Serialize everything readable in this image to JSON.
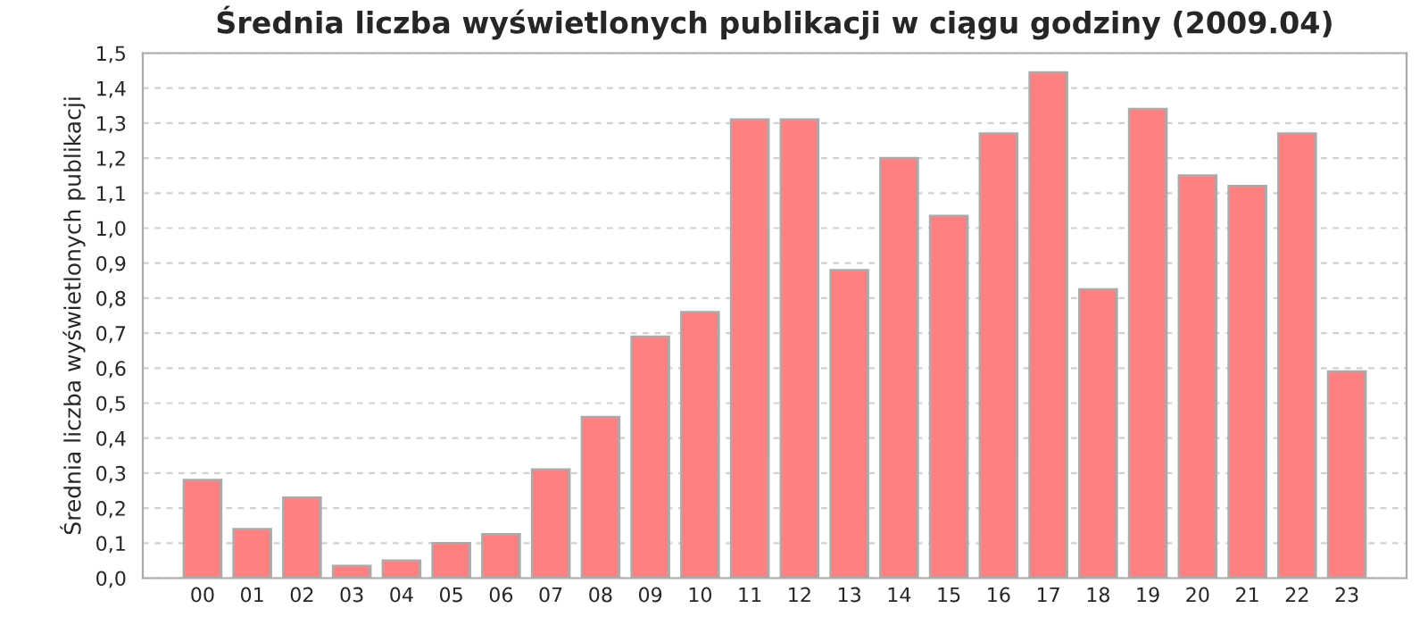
{
  "chart_data": {
    "type": "bar",
    "title": "Średnia liczba wyświetlonych publikacji w ciągu godziny (2009.04)",
    "ylabel": "Średnia liczba wyświetlonych publikacji",
    "categories": [
      "00",
      "01",
      "02",
      "03",
      "04",
      "05",
      "06",
      "07",
      "08",
      "09",
      "10",
      "11",
      "12",
      "13",
      "14",
      "15",
      "16",
      "17",
      "18",
      "19",
      "20",
      "21",
      "22",
      "23"
    ],
    "values": [
      0.28,
      0.14,
      0.23,
      0.035,
      0.05,
      0.1,
      0.125,
      0.31,
      0.46,
      0.69,
      0.76,
      1.31,
      1.31,
      0.88,
      1.2,
      1.035,
      1.27,
      1.445,
      0.825,
      1.34,
      1.15,
      1.12,
      1.27,
      0.59
    ],
    "color": "#ff8080",
    "ylim": [
      0,
      1.5
    ],
    "yticks": [
      {
        "value": 0,
        "label": "0,0"
      },
      {
        "value": 0.1,
        "label": "0,1"
      },
      {
        "value": 0.2,
        "label": "0,2"
      },
      {
        "value": 0.3,
        "label": "0,3"
      },
      {
        "value": 0.4,
        "label": "0,4"
      },
      {
        "value": 0.5,
        "label": "0,5"
      },
      {
        "value": 0.6,
        "label": "0,6"
      },
      {
        "value": 0.7,
        "label": "0,7"
      },
      {
        "value": 0.8,
        "label": "0,8"
      },
      {
        "value": 0.9,
        "label": "0,9"
      },
      {
        "value": 1.0,
        "label": "1,0"
      },
      {
        "value": 1.1,
        "label": "1,1"
      },
      {
        "value": 1.2,
        "label": "1,2"
      },
      {
        "value": 1.3,
        "label": "1,3"
      },
      {
        "value": 1.4,
        "label": "1,4"
      },
      {
        "value": 1.5,
        "label": "1,5"
      }
    ],
    "grid": "y"
  }
}
